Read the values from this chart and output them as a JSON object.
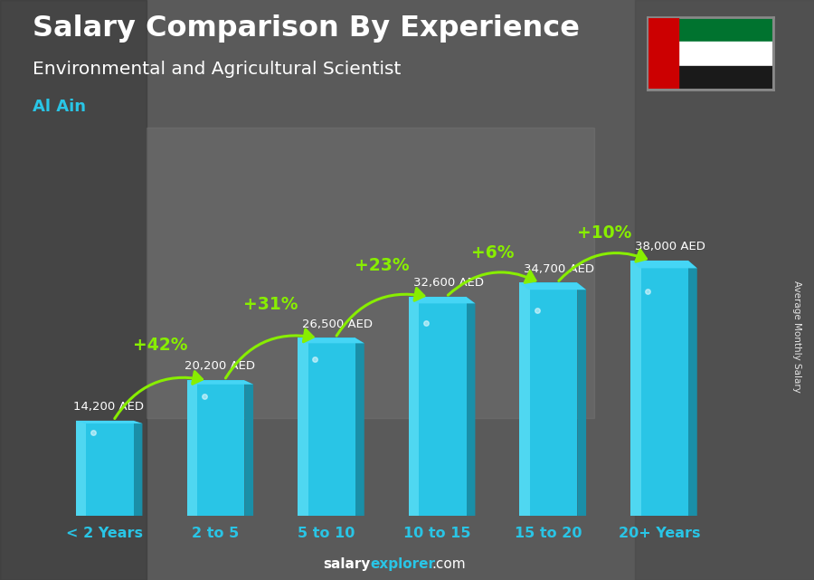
{
  "title_line1": "Salary Comparison By Experience",
  "title_line2": "Environmental and Agricultural Scientist",
  "city": "Al Ain",
  "categories": [
    "< 2 Years",
    "2 to 5",
    "5 to 10",
    "10 to 15",
    "15 to 20",
    "20+ Years"
  ],
  "values": [
    14200,
    20200,
    26500,
    32600,
    34700,
    38000
  ],
  "value_labels": [
    "14,200 AED",
    "20,200 AED",
    "26,500 AED",
    "32,600 AED",
    "34,700 AED",
    "38,000 AED"
  ],
  "pct_changes": [
    "+42%",
    "+31%",
    "+23%",
    "+6%",
    "+10%"
  ],
  "bar_face_color": "#29c5e6",
  "bar_side_color": "#1a8fa8",
  "bar_top_color": "#45d5f5",
  "bar_highlight": "#7eeeff",
  "bg_color": "#5a5a5a",
  "title_color": "#ffffff",
  "subtitle_color": "#ffffff",
  "city_color": "#29c5e6",
  "label_color": "#ffffff",
  "pct_color": "#88ee00",
  "xtick_color": "#29c5e6",
  "side_label": "Average Monthly Salary",
  "footer_salary_color": "#ffffff",
  "footer_explorer_color": "#29c5e6",
  "ylim": [
    0,
    50000
  ],
  "bar_width": 0.52,
  "side_depth": 0.08
}
